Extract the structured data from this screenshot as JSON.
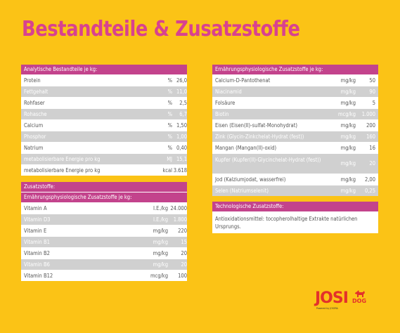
{
  "title": "Bestandteile & Zusatzstoffe",
  "analytical": {
    "header": "Analytische Bestandteile je kg:",
    "rows": [
      {
        "name": "Protein",
        "unit": "%",
        "value": "26,0"
      },
      {
        "name": "Fettgehalt",
        "unit": "%",
        "value": "11,0"
      },
      {
        "name": "Rohfaser",
        "unit": "%",
        "value": "2,5"
      },
      {
        "name": "Rohasche",
        "unit": "%",
        "value": "6,7"
      },
      {
        "name": "Calcium",
        "unit": "%",
        "value": "1,50"
      },
      {
        "name": "Phosphor",
        "unit": "%",
        "value": "1,00"
      },
      {
        "name": "Natrium",
        "unit": "%",
        "value": "0,40"
      },
      {
        "name": "metabolisierbare Energie pro kg",
        "unit": "MJ",
        "value": "15,1"
      },
      {
        "name": "metabolisierbare Energie pro kg",
        "unit": "kcal",
        "value": "3.618"
      }
    ]
  },
  "additives": {
    "header": "Zusatzstoffe:",
    "subheader": "Ernährungsphysiologische Zusatzstoffe je kg:",
    "rows": [
      {
        "name": "Vitamin A",
        "unit": "I.E./kg",
        "value": "24.000"
      },
      {
        "name": "Vitamin D3",
        "unit": "I.E./kg",
        "value": "1.800"
      },
      {
        "name": "Vitamin E",
        "unit": "mg/kg",
        "value": "220"
      },
      {
        "name": "Vitamin B1",
        "unit": "mg/kg",
        "value": "15"
      },
      {
        "name": "Vitamin B2",
        "unit": "mg/kg",
        "value": "20"
      },
      {
        "name": "Vitamin B6",
        "unit": "mg/kg",
        "value": "20"
      },
      {
        "name": "Vitamin B12",
        "unit": "mcg/kg",
        "value": "100"
      }
    ]
  },
  "nutritional": {
    "header": "Ernährungsphysiologische Zusatzstoffe je kg:",
    "rows": [
      {
        "name": "Calcium-D-Pantothenat",
        "unit": "mg/kg",
        "value": "50"
      },
      {
        "name": "Niacinamid",
        "unit": "mg/kg",
        "value": "90"
      },
      {
        "name": "Folsäure",
        "unit": "mg/kg",
        "value": "5"
      },
      {
        "name": "Biotin",
        "unit": "mcg/kg",
        "value": "1.000"
      },
      {
        "name": "Eisen (Eisen(II)-sulfat-Monohydrat)",
        "unit": "mg/kg",
        "value": "200"
      },
      {
        "name": "Zink (Glycin-Zinkchelat-Hydrat (fest))",
        "unit": "mg/kg",
        "value": "160"
      },
      {
        "name": "Mangan (Mangan(II)-oxid)",
        "unit": "mg/kg",
        "value": "16"
      },
      {
        "name": "Kupfer (Kupfer(II)-Glycinchelat-Hydrat (fest))",
        "unit": "mg/kg",
        "value": "20"
      },
      {
        "name": "Jod (Kalziumjodat, wasserfrei)",
        "unit": "mg/kg",
        "value": "2,00"
      },
      {
        "name": "Selen (Natriumselenit)",
        "unit": "mg/kg",
        "value": "0,25"
      }
    ]
  },
  "technological": {
    "header": "Technologische Zusatzstoffe:",
    "text": "Antioxidationsmittel: tocopherolhaltige Extrakte natürlichen Ursprungs."
  },
  "logo": {
    "brand": "JOSI",
    "sub": "DOG",
    "powered": "Powered by JOSERA"
  },
  "colors": {
    "background": "#fbc316",
    "accent": "#c3438c",
    "title": "#d8428f",
    "stripe": "#d0d0d0",
    "logo": "#e3312b"
  }
}
